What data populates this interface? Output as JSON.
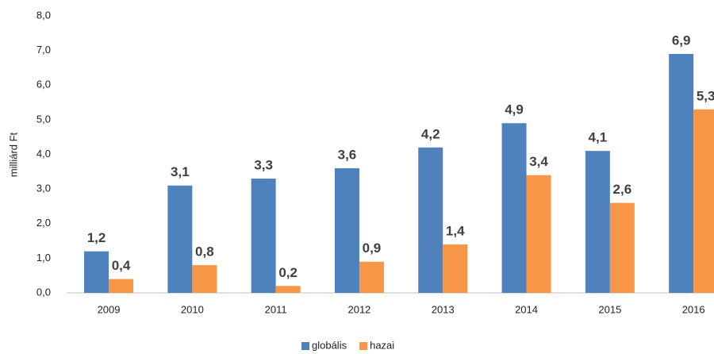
{
  "chart_data": {
    "type": "bar",
    "categories": [
      "2009",
      "2010",
      "2011",
      "2012",
      "2013",
      "2014",
      "2015",
      "2016"
    ],
    "series": [
      {
        "name": "globális",
        "color": "#4f81bd",
        "values": [
          1.2,
          3.1,
          3.3,
          3.6,
          4.2,
          4.9,
          4.1,
          6.9
        ],
        "value_labels": [
          "1,2",
          "3,1",
          "3,3",
          "3,6",
          "4,2",
          "4,9",
          "4,1",
          "6,9"
        ]
      },
      {
        "name": "hazai",
        "color": "#f79646",
        "values": [
          0.4,
          0.8,
          0.2,
          0.9,
          1.4,
          3.4,
          2.6,
          5.3
        ],
        "value_labels": [
          "0,4",
          "0,8",
          "0,2",
          "0,9",
          "1,4",
          "3,4",
          "2,6",
          "5,3"
        ]
      }
    ],
    "ylabel": "milliárd Ft",
    "ylim": [
      0,
      8
    ],
    "yticks": [
      {
        "value": 0,
        "label": "0,0"
      },
      {
        "value": 1,
        "label": "1,0"
      },
      {
        "value": 2,
        "label": "2,0"
      },
      {
        "value": 3,
        "label": "3,0"
      },
      {
        "value": 4,
        "label": "4,0"
      },
      {
        "value": 5,
        "label": "5,0"
      },
      {
        "value": 6,
        "label": "6,0"
      },
      {
        "value": 7,
        "label": "7,0"
      },
      {
        "value": 8,
        "label": "8,0"
      }
    ],
    "grid": false,
    "legend": "bottom"
  }
}
